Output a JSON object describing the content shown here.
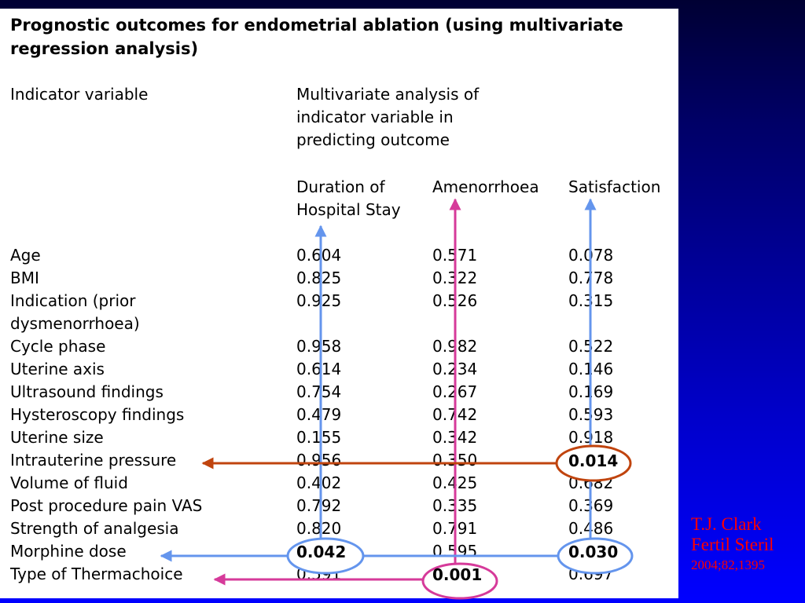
{
  "title": "Prognostic outcomes for endometrial ablation (using multivariate regression analysis)",
  "header": {
    "indicator": "Indicator variable",
    "multivariate": [
      "Multivariate analysis of",
      "indicator variable in",
      "predicting outcome"
    ],
    "col1": [
      "Duration of",
      "Hospital Stay"
    ],
    "col2": "Amenorrhoea",
    "col3": "Satisfaction"
  },
  "rows": [
    {
      "label": [
        "Age"
      ],
      "v": [
        "0.604",
        "0.571",
        "0.078"
      ]
    },
    {
      "label": [
        "BMI"
      ],
      "v": [
        "0.825",
        "0.322",
        "0.778"
      ]
    },
    {
      "label": [
        "Indication (prior",
        "dysmenorrhoea)"
      ],
      "v": [
        "0.925",
        "0.526",
        "0.315"
      ]
    },
    {
      "label": [
        "Cycle phase"
      ],
      "v": [
        "0.958",
        "0.982",
        "0.522"
      ]
    },
    {
      "label": [
        "Uterine axis"
      ],
      "v": [
        "0.614",
        "0.234",
        "0.146"
      ]
    },
    {
      "label": [
        "Ultrasound findings"
      ],
      "v": [
        "0.754",
        "0.267",
        "0.169"
      ]
    },
    {
      "label": [
        "Hysteroscopy findings"
      ],
      "v": [
        "0.479",
        "0.742",
        "0.593"
      ]
    },
    {
      "label": [
        "Uterine size"
      ],
      "v": [
        "0.155",
        "0.342",
        "0.918"
      ]
    },
    {
      "label": [
        "Intrauterine pressure"
      ],
      "v": [
        "0.956",
        "0.350",
        "0.014"
      ],
      "bold": [
        false,
        false,
        true
      ]
    },
    {
      "label": [
        "Volume of fluid"
      ],
      "v": [
        "0.402",
        "0.425",
        "0.682"
      ]
    },
    {
      "label": [
        "Post procedure pain VAS"
      ],
      "v": [
        "0.792",
        "0.335",
        "0.369"
      ]
    },
    {
      "label": [
        "Strength of analgesia"
      ],
      "v": [
        "0.820",
        "0.791",
        "0.486"
      ]
    },
    {
      "label": [
        "Morphine dose"
      ],
      "v": [
        "0.042",
        "0.595",
        "0.030"
      ],
      "bold": [
        true,
        false,
        true
      ]
    },
    {
      "label": [
        "Type of Thermachoice"
      ],
      "v": [
        "0.591",
        "0.001",
        "0.697"
      ],
      "bold": [
        false,
        true,
        false
      ]
    }
  ],
  "citation": [
    "T.J. Clark",
    "Fertil Steril",
    "2004;82,1395"
  ],
  "colors": {
    "blue_arrow": "#6495ed",
    "magenta_arrow": "#d63a9a",
    "orange_arrow": "#c0440e",
    "citation": "#ff0000"
  }
}
